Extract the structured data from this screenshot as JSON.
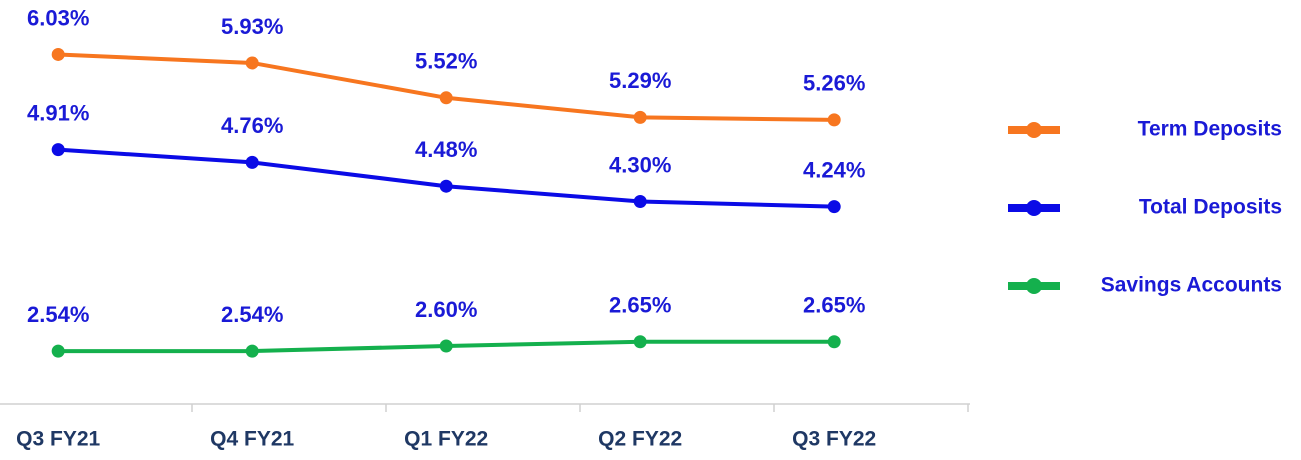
{
  "chart_data": {
    "type": "line",
    "categories": [
      "Q3 FY21",
      "Q4 FY21",
      "Q1 FY22",
      "Q2 FY22",
      "Q3 FY22"
    ],
    "series": [
      {
        "name": "Term Deposits",
        "color": "#f7761f",
        "values": [
          6.03,
          5.93,
          5.52,
          5.29,
          5.26
        ],
        "value_labels": [
          "6.03%",
          "5.93%",
          "5.52%",
          "5.29%",
          "5.26%"
        ]
      },
      {
        "name": "Total Deposits",
        "color": "#0b0be6",
        "values": [
          4.91,
          4.76,
          4.48,
          4.3,
          4.24
        ],
        "value_labels": [
          "4.91%",
          "4.76%",
          "4.48%",
          "4.30%",
          "4.24%"
        ]
      },
      {
        "name": "Savings Accounts",
        "color": "#14b04d",
        "values": [
          2.54,
          2.54,
          2.6,
          2.65,
          2.65
        ],
        "value_labels": [
          "2.54%",
          "2.54%",
          "2.60%",
          "2.65%",
          "2.65%"
        ]
      }
    ],
    "ylim": [
      2.2,
      6.2
    ],
    "legend": "right"
  }
}
